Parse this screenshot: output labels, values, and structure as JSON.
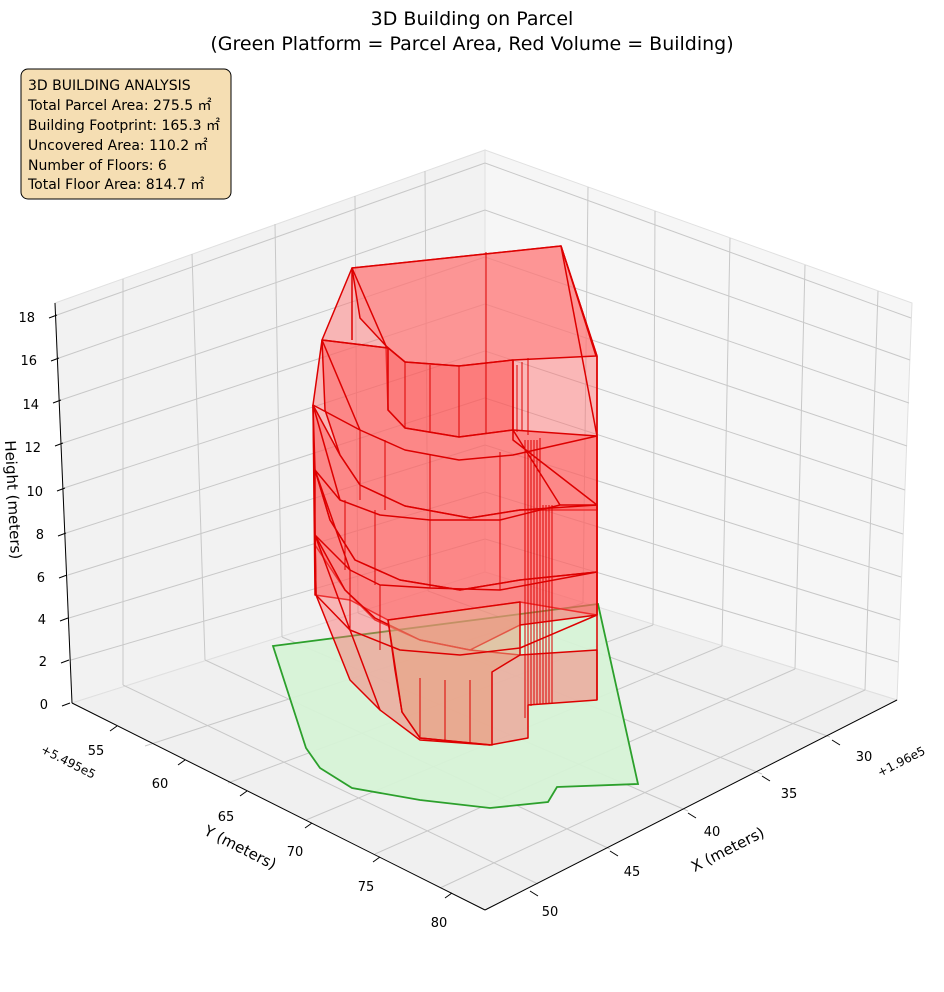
{
  "chart_data": {
    "type": "3d-surface",
    "title_line1": "3D Building on Parcel",
    "title_line2": "(Green Platform = Parcel Area, Red Volume = Building)",
    "xlabel": "X (meters)",
    "ylabel": "Y (meters)",
    "zlabel": "Height (meters)",
    "x_offset": "+1.96e5",
    "y_offset": "+5.495e5",
    "x_ticks": [
      "30",
      "35",
      "40",
      "45",
      "50"
    ],
    "y_ticks": [
      "55",
      "60",
      "65",
      "70",
      "75",
      "80"
    ],
    "z_ticks": [
      "0",
      "2",
      "4",
      "6",
      "8",
      "10",
      "12",
      "14",
      "16",
      "18"
    ],
    "info_box": {
      "heading": "3D BUILDING ANALYSIS",
      "line1": "Total Parcel Area: 275.5 ㎡",
      "line2": "Building Footprint: 165.3 ㎡",
      "line3": "Uncovered Area: 110.2 ㎡",
      "line4": "Number of Floors: 6",
      "line5": "Total Floor Area: 814.7 ㎡"
    },
    "parcel_area": 275.5,
    "building_footprint": 165.3,
    "uncovered_area": 110.2,
    "floors": 6,
    "total_floor_area": 814.7,
    "colors": {
      "parcel_fill": "#d6f2d6",
      "parcel_edge": "#2ca02c",
      "building_fill": "#ff5a5a",
      "building_edge": "#dd0000",
      "info_bg": "#f5deb3"
    }
  }
}
